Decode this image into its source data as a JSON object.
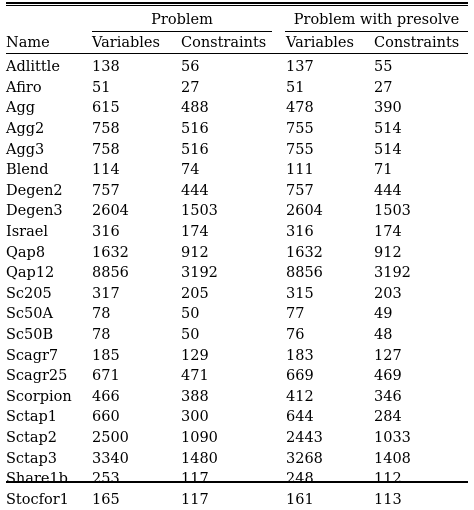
{
  "table": {
    "group_headers": [
      "Problem",
      "Problem with presolve"
    ],
    "columns": [
      "Name",
      "Variables",
      "Constraints",
      "Variables",
      "Constraints"
    ],
    "rows": [
      [
        "Adlittle",
        "138",
        "56",
        "137",
        "55"
      ],
      [
        "Afiro",
        "51",
        "27",
        "51",
        "27"
      ],
      [
        "Agg",
        "615",
        "488",
        "478",
        "390"
      ],
      [
        "Agg2",
        "758",
        "516",
        "755",
        "514"
      ],
      [
        "Agg3",
        "758",
        "516",
        "755",
        "514"
      ],
      [
        "Blend",
        "114",
        "74",
        "111",
        "71"
      ],
      [
        "Degen2",
        "757",
        "444",
        "757",
        "444"
      ],
      [
        "Degen3",
        "2604",
        "1503",
        "2604",
        "1503"
      ],
      [
        "Israel",
        "316",
        "174",
        "316",
        "174"
      ],
      [
        "Qap8",
        "1632",
        "912",
        "1632",
        "912"
      ],
      [
        "Qap12",
        "8856",
        "3192",
        "8856",
        "3192"
      ],
      [
        "Sc205",
        "317",
        "205",
        "315",
        "203"
      ],
      [
        "Sc50A",
        "78",
        "50",
        "77",
        "49"
      ],
      [
        "Sc50B",
        "78",
        "50",
        "76",
        "48"
      ],
      [
        "Scagr7",
        "185",
        "129",
        "183",
        "127"
      ],
      [
        "Scagr25",
        "671",
        "471",
        "669",
        "469"
      ],
      [
        "Scorpion",
        "466",
        "388",
        "412",
        "346"
      ],
      [
        "Sctap1",
        "660",
        "300",
        "644",
        "284"
      ],
      [
        "Sctap2",
        "2500",
        "1090",
        "2443",
        "1033"
      ],
      [
        "Sctap3",
        "3340",
        "1480",
        "3268",
        "1408"
      ],
      [
        "Share1b",
        "253",
        "117",
        "248",
        "112"
      ],
      [
        "Stocfor1",
        "165",
        "117",
        "161",
        "113"
      ]
    ]
  }
}
